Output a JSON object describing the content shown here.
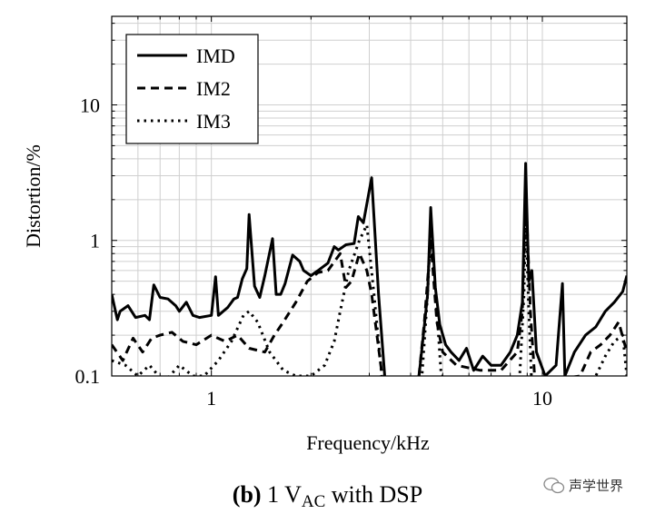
{
  "chart_data": {
    "type": "line",
    "xscale": "log",
    "yscale": "log",
    "xlabel": "Frequency/kHz",
    "ylabel": "Distortion/%",
    "xlim": [
      0.5,
      18
    ],
    "ylim": [
      0.1,
      45
    ],
    "xticks": [
      {
        "v": 1,
        "label": "1"
      },
      {
        "v": 10,
        "label": "10"
      }
    ],
    "yticks": [
      {
        "v": 0.1,
        "label": "0.1"
      },
      {
        "v": 1,
        "label": "1"
      },
      {
        "v": 10,
        "label": "10"
      }
    ],
    "grid": true,
    "legend_position": "top-left",
    "series": [
      {
        "name": "IMD",
        "style": "solid",
        "points": [
          [
            0.5,
            0.4
          ],
          [
            0.52,
            0.26
          ],
          [
            0.53,
            0.3
          ],
          [
            0.56,
            0.33
          ],
          [
            0.59,
            0.27
          ],
          [
            0.63,
            0.28
          ],
          [
            0.65,
            0.26
          ],
          [
            0.67,
            0.47
          ],
          [
            0.7,
            0.38
          ],
          [
            0.74,
            0.37
          ],
          [
            0.78,
            0.33
          ],
          [
            0.8,
            0.3
          ],
          [
            0.84,
            0.35
          ],
          [
            0.88,
            0.28
          ],
          [
            0.92,
            0.27
          ],
          [
            1.0,
            0.28
          ],
          [
            1.03,
            0.54
          ],
          [
            1.05,
            0.28
          ],
          [
            1.12,
            0.32
          ],
          [
            1.17,
            0.37
          ],
          [
            1.2,
            0.38
          ],
          [
            1.24,
            0.52
          ],
          [
            1.28,
            0.62
          ],
          [
            1.3,
            1.55
          ],
          [
            1.35,
            0.46
          ],
          [
            1.4,
            0.38
          ],
          [
            1.45,
            0.55
          ],
          [
            1.53,
            1.03
          ],
          [
            1.57,
            0.4
          ],
          [
            1.62,
            0.4
          ],
          [
            1.67,
            0.48
          ],
          [
            1.76,
            0.78
          ],
          [
            1.85,
            0.7
          ],
          [
            1.9,
            0.6
          ],
          [
            2.0,
            0.55
          ],
          [
            2.1,
            0.6
          ],
          [
            2.25,
            0.68
          ],
          [
            2.35,
            0.9
          ],
          [
            2.42,
            0.85
          ],
          [
            2.55,
            0.93
          ],
          [
            2.7,
            0.95
          ],
          [
            2.78,
            1.5
          ],
          [
            2.88,
            1.35
          ],
          [
            3.05,
            2.9
          ],
          [
            3.2,
            0.4
          ],
          [
            3.35,
            0.09
          ],
          [
            4.2,
            0.08
          ],
          [
            4.35,
            0.18
          ],
          [
            4.5,
            0.4
          ],
          [
            4.6,
            1.75
          ],
          [
            4.75,
            0.45
          ],
          [
            4.9,
            0.24
          ],
          [
            5.1,
            0.17
          ],
          [
            5.3,
            0.15
          ],
          [
            5.6,
            0.13
          ],
          [
            5.9,
            0.16
          ],
          [
            6.2,
            0.11
          ],
          [
            6.6,
            0.14
          ],
          [
            7.0,
            0.12
          ],
          [
            7.5,
            0.12
          ],
          [
            8.0,
            0.15
          ],
          [
            8.4,
            0.2
          ],
          [
            8.7,
            0.35
          ],
          [
            8.9,
            3.7
          ],
          [
            9.1,
            0.5
          ],
          [
            9.3,
            0.6
          ],
          [
            9.6,
            0.15
          ],
          [
            10.2,
            0.1
          ],
          [
            11.0,
            0.12
          ],
          [
            11.5,
            0.48
          ],
          [
            11.7,
            0.1
          ],
          [
            12.5,
            0.15
          ],
          [
            13.5,
            0.2
          ],
          [
            14.5,
            0.23
          ],
          [
            15.5,
            0.3
          ],
          [
            16.5,
            0.35
          ],
          [
            17.5,
            0.42
          ],
          [
            18,
            0.55
          ]
        ]
      },
      {
        "name": "IM2",
        "style": "dashed",
        "points": [
          [
            0.5,
            0.17
          ],
          [
            0.54,
            0.13
          ],
          [
            0.58,
            0.19
          ],
          [
            0.62,
            0.15
          ],
          [
            0.66,
            0.19
          ],
          [
            0.7,
            0.2
          ],
          [
            0.76,
            0.21
          ],
          [
            0.82,
            0.18
          ],
          [
            0.9,
            0.17
          ],
          [
            1.0,
            0.2
          ],
          [
            1.1,
            0.18
          ],
          [
            1.2,
            0.2
          ],
          [
            1.3,
            0.16
          ],
          [
            1.45,
            0.15
          ],
          [
            1.55,
            0.2
          ],
          [
            1.65,
            0.25
          ],
          [
            1.8,
            0.35
          ],
          [
            1.95,
            0.5
          ],
          [
            2.1,
            0.58
          ],
          [
            2.25,
            0.6
          ],
          [
            2.45,
            0.8
          ],
          [
            2.55,
            0.45
          ],
          [
            2.65,
            0.5
          ],
          [
            2.8,
            0.8
          ],
          [
            2.95,
            0.6
          ],
          [
            3.05,
            0.4
          ],
          [
            3.3,
            0.09
          ],
          [
            4.2,
            0.08
          ],
          [
            4.4,
            0.25
          ],
          [
            4.6,
            1.0
          ],
          [
            4.8,
            0.25
          ],
          [
            5.0,
            0.15
          ],
          [
            5.5,
            0.12
          ],
          [
            6.5,
            0.11
          ],
          [
            7.5,
            0.11
          ],
          [
            8.4,
            0.15
          ],
          [
            8.7,
            0.3
          ],
          [
            8.9,
            2.5
          ],
          [
            9.2,
            0.3
          ],
          [
            9.5,
            0.09
          ],
          [
            13,
            0.1
          ],
          [
            14,
            0.15
          ],
          [
            15,
            0.17
          ],
          [
            16,
            0.2
          ],
          [
            17,
            0.25
          ],
          [
            18,
            0.15
          ]
        ]
      },
      {
        "name": "IM3",
        "style": "dotted",
        "points": [
          [
            0.5,
            0.13
          ],
          [
            0.55,
            0.12
          ],
          [
            0.6,
            0.1
          ],
          [
            0.65,
            0.12
          ],
          [
            0.72,
            0.09
          ],
          [
            0.8,
            0.12
          ],
          [
            0.88,
            0.1
          ],
          [
            0.95,
            0.1
          ],
          [
            1.05,
            0.13
          ],
          [
            1.15,
            0.18
          ],
          [
            1.25,
            0.28
          ],
          [
            1.3,
            0.3
          ],
          [
            1.38,
            0.25
          ],
          [
            1.5,
            0.15
          ],
          [
            1.65,
            0.11
          ],
          [
            1.8,
            0.1
          ],
          [
            2.0,
            0.1
          ],
          [
            2.2,
            0.12
          ],
          [
            2.35,
            0.18
          ],
          [
            2.45,
            0.3
          ],
          [
            2.6,
            0.6
          ],
          [
            2.8,
            1.0
          ],
          [
            2.95,
            1.3
          ],
          [
            3.1,
            0.4
          ],
          [
            3.3,
            0.08
          ],
          [
            4.3,
            0.08
          ],
          [
            4.5,
            0.4
          ],
          [
            4.6,
            1.3
          ],
          [
            4.8,
            0.3
          ],
          [
            4.95,
            0.1
          ],
          [
            8.5,
            0.08
          ],
          [
            8.8,
            0.4
          ],
          [
            8.9,
            1.5
          ],
          [
            9.1,
            0.3
          ],
          [
            9.3,
            0.08
          ],
          [
            14.5,
            0.1
          ],
          [
            15.5,
            0.14
          ],
          [
            16.5,
            0.18
          ],
          [
            17.5,
            0.2
          ],
          [
            18,
            0.1
          ]
        ]
      }
    ]
  },
  "caption": {
    "label": "(b)",
    "text_pre": " 1 V",
    "subscript": "AC",
    "text_post": " with DSP"
  },
  "watermark": {
    "text": "声学世界"
  }
}
